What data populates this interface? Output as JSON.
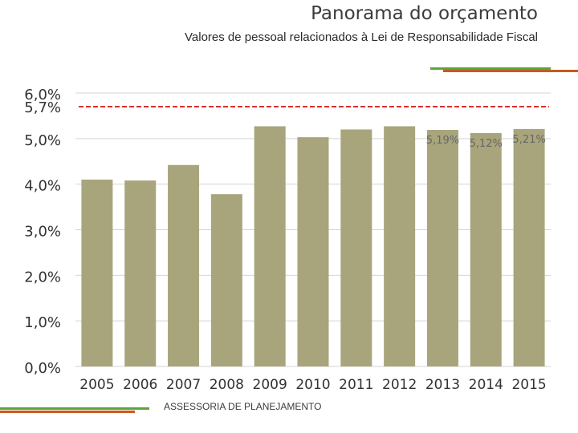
{
  "header": {
    "title": "Panorama do orçamento",
    "subtitle": "Valores de pessoal relacionados à Lei de Responsabilidade Fiscal"
  },
  "footer": {
    "text": "ASSESSORIA DE PLANEJAMENTO"
  },
  "colors": {
    "bar": "#a8a57c",
    "limit_line": "#d9302c",
    "grid": "#d4d4d4",
    "accent_green": "#5ca53a",
    "accent_orange": "#c65a1e"
  },
  "chart_data": {
    "type": "bar",
    "title": "",
    "xlabel": "",
    "ylabel": "",
    "categories": [
      "2005",
      "2006",
      "2007",
      "2008",
      "2009",
      "2010",
      "2011",
      "2012",
      "2013",
      "2014",
      "2015"
    ],
    "values": [
      4.1,
      4.08,
      4.42,
      3.78,
      5.27,
      5.03,
      5.2,
      5.27,
      5.19,
      5.12,
      5.21
    ],
    "data_labels": [
      "",
      "",
      "",
      "",
      "",
      "",
      "",
      "",
      "5,19%",
      "5,12%",
      "5,21%"
    ],
    "ylim": [
      0,
      6
    ],
    "yticks": [
      0,
      1,
      2,
      3,
      4,
      5,
      6
    ],
    "ytick_labels": [
      "0,0%",
      "1,0%",
      "2,0%",
      "3,0%",
      "4,0%",
      "5,0%",
      "6,0%"
    ],
    "grid": true,
    "reference_line": {
      "value": 5.7,
      "label": "5,7%",
      "style": "dashed"
    }
  }
}
